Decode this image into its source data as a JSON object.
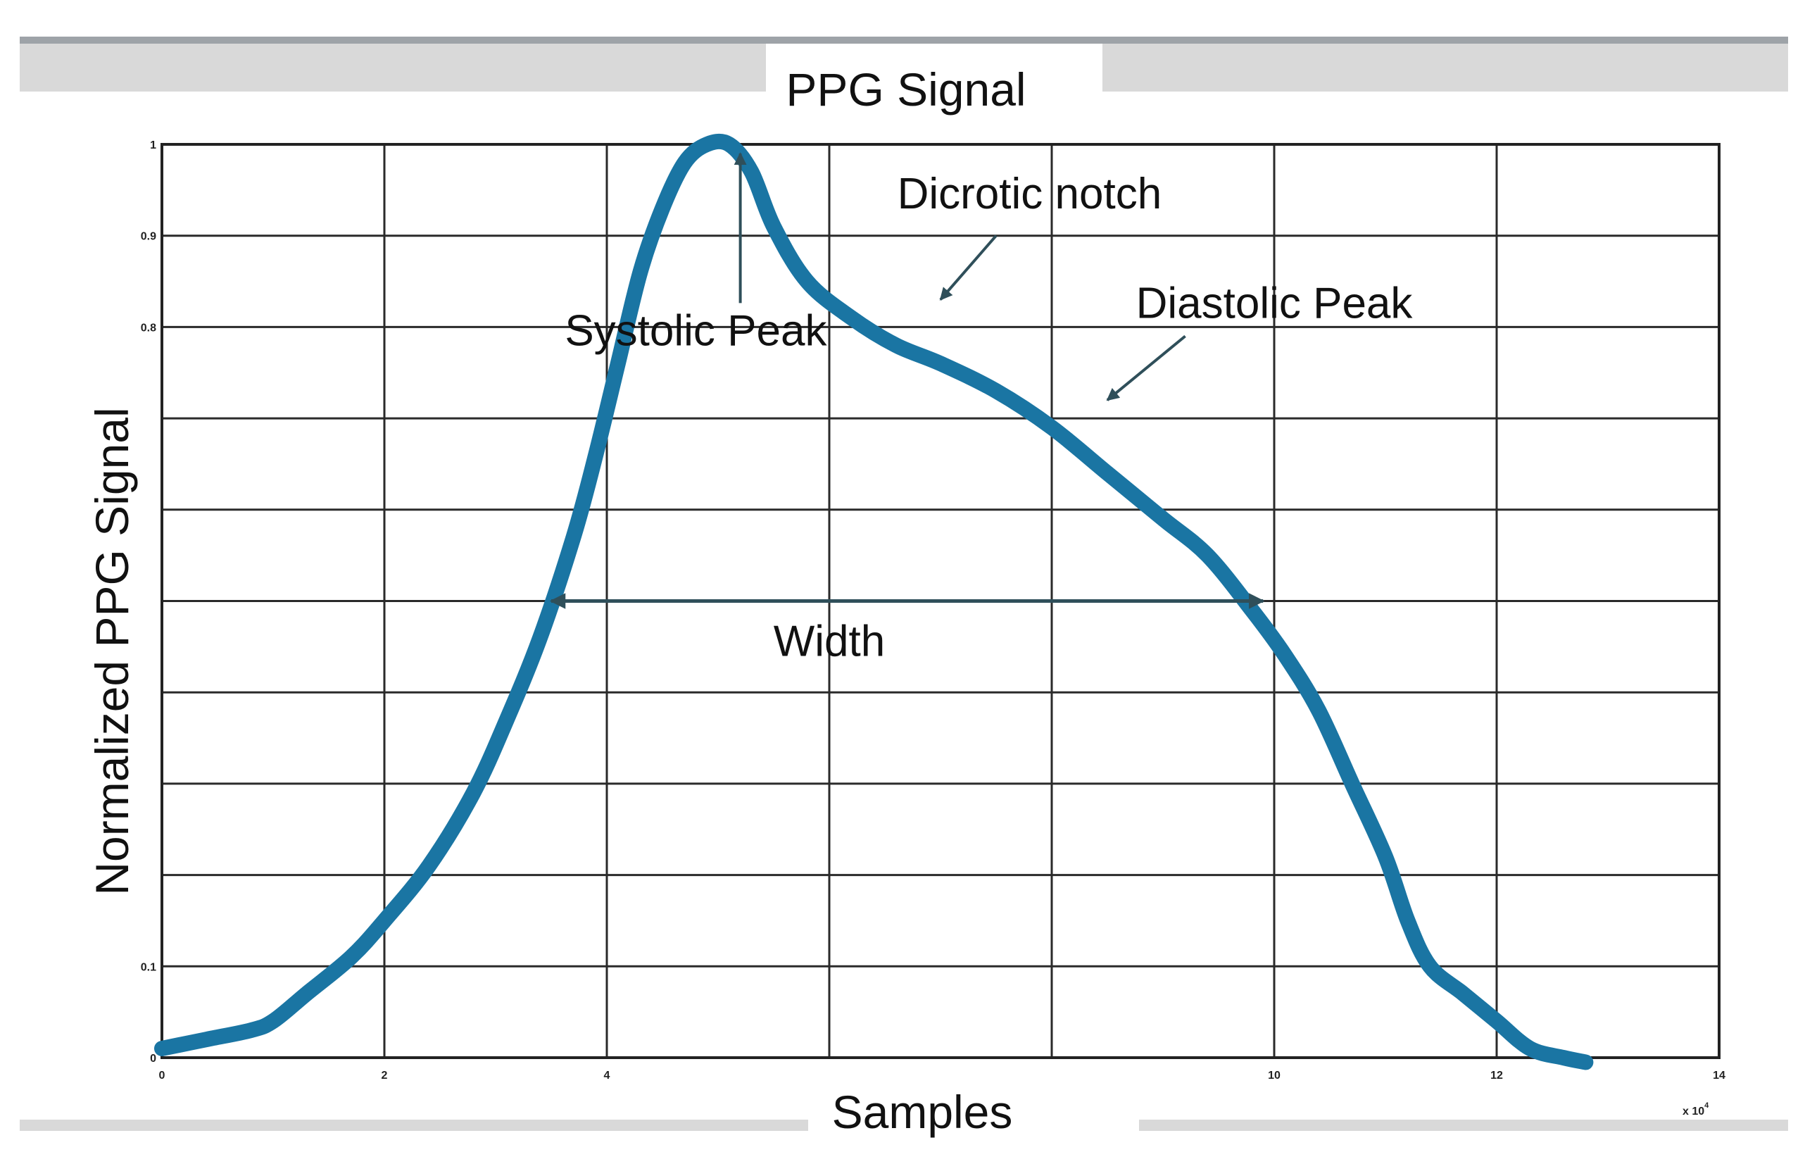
{
  "chart_data": {
    "type": "line",
    "title": "PPG Signal",
    "xlabel": "Samples",
    "ylabel": "Normalized PPG Signal",
    "x_multiplier": "x 10",
    "x_multiplier_exp": "4",
    "xlim": [
      0,
      14
    ],
    "ylim": [
      0,
      1
    ],
    "grid": true,
    "x_grid": [
      0,
      2,
      4,
      6,
      8,
      10,
      12,
      14
    ],
    "y_grid": [
      0,
      0.1,
      0.2,
      0.3,
      0.4,
      0.5,
      0.6,
      0.7,
      0.8,
      0.9,
      1.0
    ],
    "x_tick_labels": [
      {
        "value": 0,
        "label": "0"
      },
      {
        "value": 2,
        "label": "2"
      },
      {
        "value": 4,
        "label": "4"
      },
      {
        "value": 10,
        "label": "10"
      },
      {
        "value": 12,
        "label": "12"
      },
      {
        "value": 14,
        "label": "14"
      }
    ],
    "y_tick_labels": [
      {
        "value": 0,
        "label": "0"
      },
      {
        "value": 0.1,
        "label": "0.1"
      },
      {
        "value": 0.8,
        "label": "0.8"
      },
      {
        "value": 0.9,
        "label": "0.9"
      },
      {
        "value": 1,
        "label": "1"
      }
    ],
    "series": [
      {
        "color": "#1a75a3",
        "x": [
          0.0,
          0.4,
          0.8,
          1.0,
          1.3,
          1.7,
          2.0,
          2.4,
          2.8,
          3.1,
          3.4,
          3.7,
          3.9,
          4.1,
          4.3,
          4.5,
          4.7,
          4.9,
          5.1,
          5.3,
          5.5,
          5.8,
          6.2,
          6.6,
          7.0,
          7.5,
          8.0,
          8.5,
          9.0,
          9.4,
          9.8,
          10.1,
          10.4,
          10.7,
          11.0,
          11.2,
          11.4,
          11.7,
          12.0,
          12.3,
          12.6,
          12.8
        ],
        "y": [
          0.01,
          0.02,
          0.03,
          0.04,
          0.07,
          0.11,
          0.15,
          0.21,
          0.29,
          0.37,
          0.46,
          0.57,
          0.66,
          0.76,
          0.86,
          0.93,
          0.98,
          1.0,
          1.0,
          0.97,
          0.91,
          0.85,
          0.81,
          0.78,
          0.76,
          0.73,
          0.69,
          0.64,
          0.59,
          0.55,
          0.49,
          0.44,
          0.38,
          0.3,
          0.22,
          0.15,
          0.1,
          0.07,
          0.04,
          0.01,
          0.0,
          -0.005
        ]
      }
    ],
    "annotations": [
      {
        "text": "Systolic Peak",
        "x": 4.8,
        "y": 0.78,
        "arrow_to": {
          "x": 5.2,
          "y": 0.99
        }
      },
      {
        "text": "Dicrotic notch",
        "x": 7.8,
        "y": 0.93,
        "arrow_from": {
          "x": 7.5,
          "y": 0.9
        },
        "arrow_to": {
          "x": 7.0,
          "y": 0.83
        }
      },
      {
        "text": "Diastolic Peak",
        "x": 10.0,
        "y": 0.81,
        "arrow_from": {
          "x": 9.2,
          "y": 0.79
        },
        "arrow_to": {
          "x": 8.5,
          "y": 0.72
        }
      },
      {
        "text": "Width",
        "x": 6.0,
        "y": 0.44,
        "arrow_from": {
          "x": 3.5,
          "y": 0.5
        },
        "arrow_to": {
          "x": 9.9,
          "y": 0.5
        }
      }
    ]
  }
}
